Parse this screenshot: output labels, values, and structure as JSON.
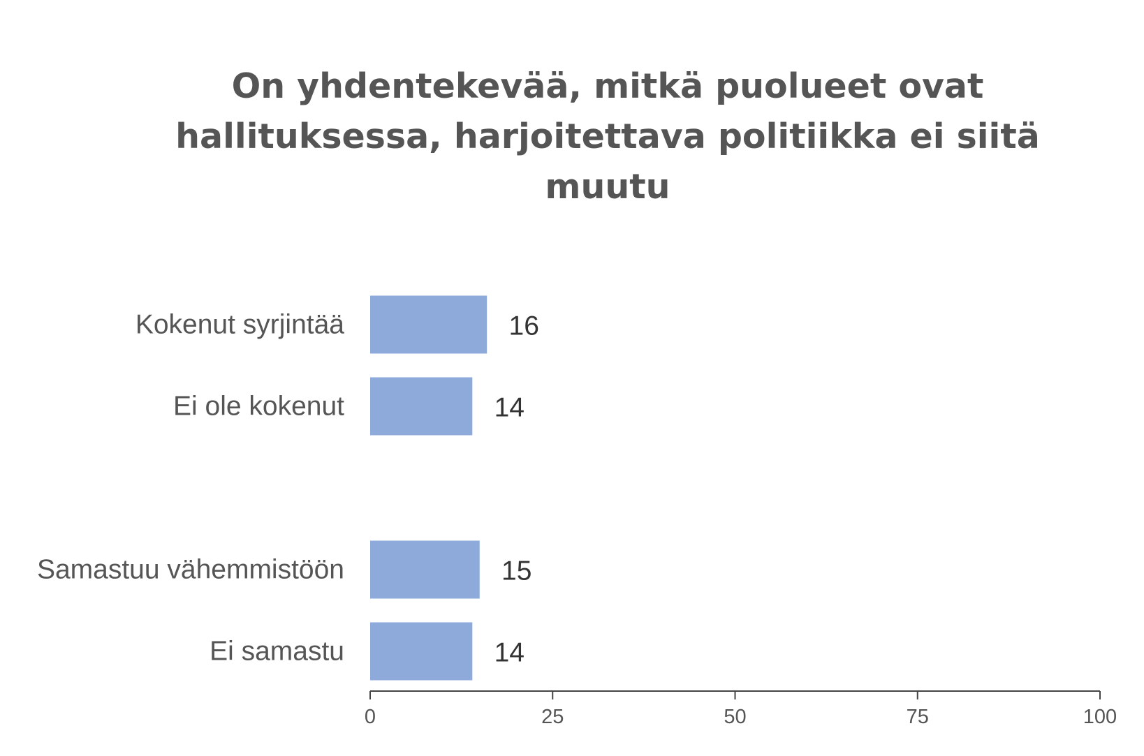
{
  "chart_data": {
    "type": "bar",
    "orientation": "horizontal",
    "title": "On yhdentekevää, mitkä puolueet ovat hallituksessa, harjoitettava politiikka ei siitä muutu",
    "groups": [
      {
        "categories": [
          "Kokenut syrjintää",
          "Ei ole kokenut"
        ],
        "values": [
          16,
          14
        ]
      },
      {
        "categories": [
          "Samastuu vähemmistöön",
          "Ei samastu"
        ],
        "values": [
          15,
          14
        ]
      }
    ],
    "value_labels": [
      "16",
      "14",
      "15",
      "14"
    ],
    "xlim": [
      0,
      100
    ],
    "xticks": [
      0,
      25,
      50,
      75,
      100
    ],
    "xtick_labels": [
      "0",
      "25",
      "50",
      "75",
      "100"
    ],
    "grid": false,
    "legend": "none",
    "bar_color": "#8eaadb"
  }
}
